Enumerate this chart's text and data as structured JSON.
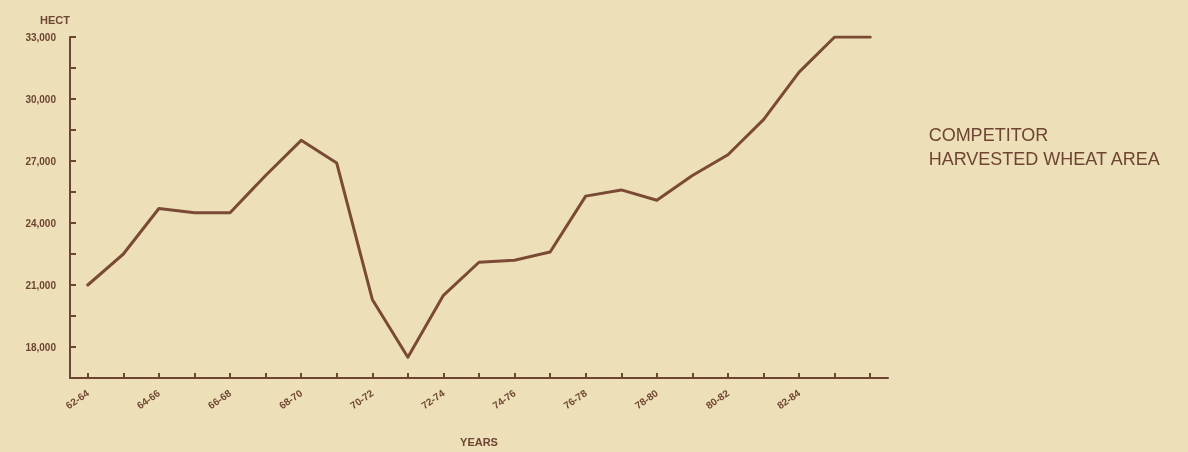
{
  "chart_data": {
    "type": "line",
    "title": "COMPETITOR\nHARVESTED WHEAT AREA",
    "xlabel": "YEARS",
    "ylabel": "HECT",
    "categories": [
      "62-64",
      null,
      "64-66",
      null,
      "66-68",
      null,
      "68-70",
      null,
      "70-72",
      null,
      "72-74",
      null,
      "74-76",
      null,
      "76-78",
      null,
      "78-80",
      null,
      "80-82",
      null,
      "82-84",
      null,
      null
    ],
    "series": [
      {
        "color": "#7a4a35",
        "values": [
          21000,
          22500,
          24700,
          24500,
          24500,
          26300,
          28000,
          26900,
          20300,
          17500,
          20500,
          22100,
          22200,
          22600,
          25300,
          25600,
          25100,
          26300,
          27300,
          29000,
          31300,
          33000,
          33000
        ]
      }
    ],
    "ylim": [
      16500,
      33000
    ],
    "yticks": [
      {
        "value": 18000,
        "label": "18,000"
      },
      {
        "value": 19500,
        "label": null
      },
      {
        "value": 21000,
        "label": "21,000"
      },
      {
        "value": 22500,
        "label": null
      },
      {
        "value": 24000,
        "label": "24,000"
      },
      {
        "value": 25500,
        "label": null
      },
      {
        "value": 27000,
        "label": "27,000"
      },
      {
        "value": 28500,
        "label": null
      },
      {
        "value": 30000,
        "label": "30,000"
      },
      {
        "value": 31500,
        "label": null
      },
      {
        "value": 33000,
        "label": "33,000"
      }
    ],
    "grid": false,
    "marker": "none",
    "line_style": "solid"
  }
}
